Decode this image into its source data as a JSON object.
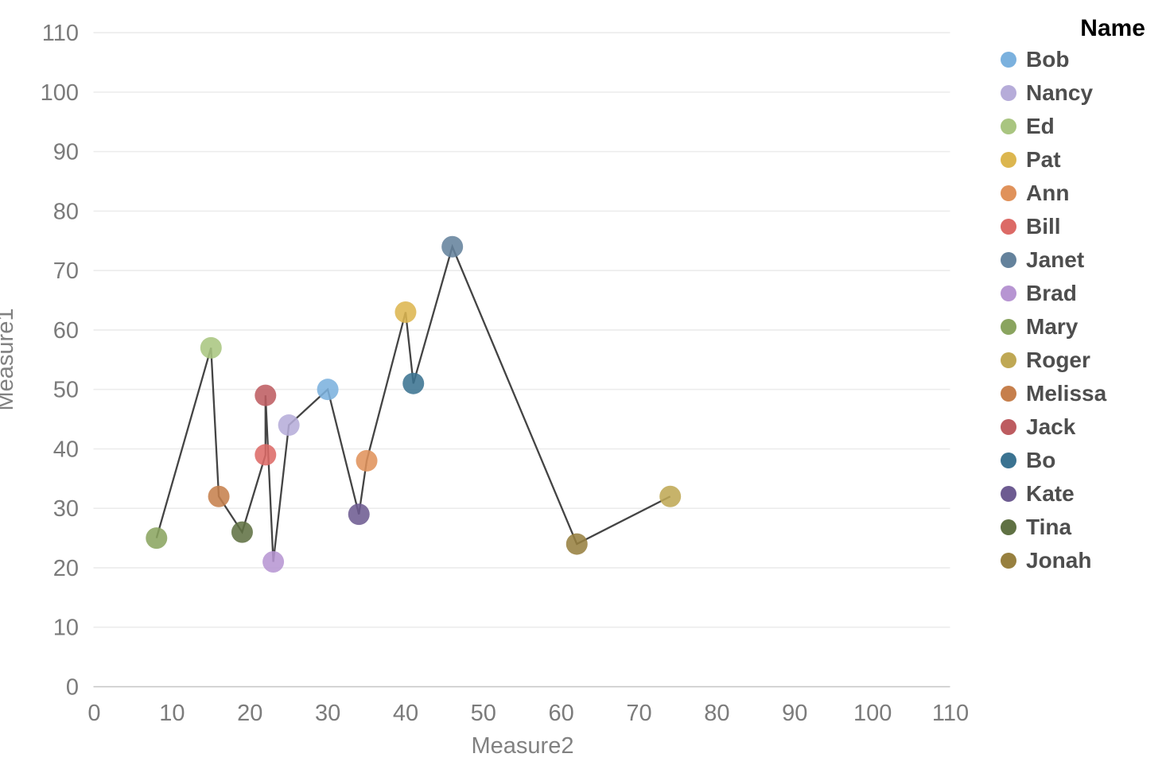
{
  "chart_data": {
    "type": "scatter",
    "subtype": "connected-scatter",
    "xlabel": "Measure2",
    "ylabel": "Measure1",
    "xlim": [
      0,
      110
    ],
    "ylim": [
      0,
      110
    ],
    "xticks": [
      0,
      10,
      20,
      30,
      40,
      50,
      60,
      70,
      80,
      90,
      100,
      110
    ],
    "yticks": [
      0,
      10,
      20,
      30,
      40,
      50,
      60,
      70,
      80,
      90,
      100,
      110
    ],
    "grid": "horizontal-only",
    "line_color": "#3a3a3a",
    "gridline_color": "#ececec",
    "axisline_color": "#c6c6c6",
    "legend_title": "Name",
    "legend_position": "right",
    "points_in_line_order": [
      {
        "name": "Mary",
        "x": 8,
        "y": 25,
        "color": "#8AA45F"
      },
      {
        "name": "Ed",
        "x": 15,
        "y": 57,
        "color": "#A9C580"
      },
      {
        "name": "Melissa",
        "x": 16,
        "y": 32,
        "color": "#C67F4C"
      },
      {
        "name": "Tina",
        "x": 19,
        "y": 26,
        "color": "#5F7143"
      },
      {
        "name": "Bill",
        "x": 22,
        "y": 39,
        "color": "#DC6A66"
      },
      {
        "name": "Jack",
        "x": 22,
        "y": 49,
        "color": "#BD5C60"
      },
      {
        "name": "Brad",
        "x": 23,
        "y": 21,
        "color": "#B795D2"
      },
      {
        "name": "Nancy",
        "x": 25,
        "y": 44,
        "color": "#B6ACD9"
      },
      {
        "name": "Bob",
        "x": 30,
        "y": 50,
        "color": "#7BB1DE"
      },
      {
        "name": "Kate",
        "x": 34,
        "y": 29,
        "color": "#6D5B91"
      },
      {
        "name": "Ann",
        "x": 35,
        "y": 38,
        "color": "#E0925B"
      },
      {
        "name": "Pat",
        "x": 40,
        "y": 63,
        "color": "#DCB64F"
      },
      {
        "name": "Bo",
        "x": 41,
        "y": 51,
        "color": "#3B7391"
      },
      {
        "name": "Janet",
        "x": 46,
        "y": 74,
        "color": "#64829C"
      },
      {
        "name": "Jonah",
        "x": 62,
        "y": 24,
        "color": "#97803F"
      },
      {
        "name": "Roger",
        "x": 74,
        "y": 32,
        "color": "#BFA854"
      }
    ],
    "legend_entries": [
      {
        "name": "Bob",
        "color": "#7BB1DE"
      },
      {
        "name": "Nancy",
        "color": "#B6ACD9"
      },
      {
        "name": "Ed",
        "color": "#A9C580"
      },
      {
        "name": "Pat",
        "color": "#DCB64F"
      },
      {
        "name": "Ann",
        "color": "#E0925B"
      },
      {
        "name": "Bill",
        "color": "#DC6A66"
      },
      {
        "name": "Janet",
        "color": "#64829C"
      },
      {
        "name": "Brad",
        "color": "#B795D2"
      },
      {
        "name": "Mary",
        "color": "#8AA45F"
      },
      {
        "name": "Roger",
        "color": "#BFA854"
      },
      {
        "name": "Melissa",
        "color": "#C67F4C"
      },
      {
        "name": "Jack",
        "color": "#BD5C60"
      },
      {
        "name": "Bo",
        "color": "#3B7391"
      },
      {
        "name": "Kate",
        "color": "#6D5B91"
      },
      {
        "name": "Tina",
        "color": "#5F7143"
      },
      {
        "name": "Jonah",
        "color": "#97803F"
      }
    ]
  }
}
